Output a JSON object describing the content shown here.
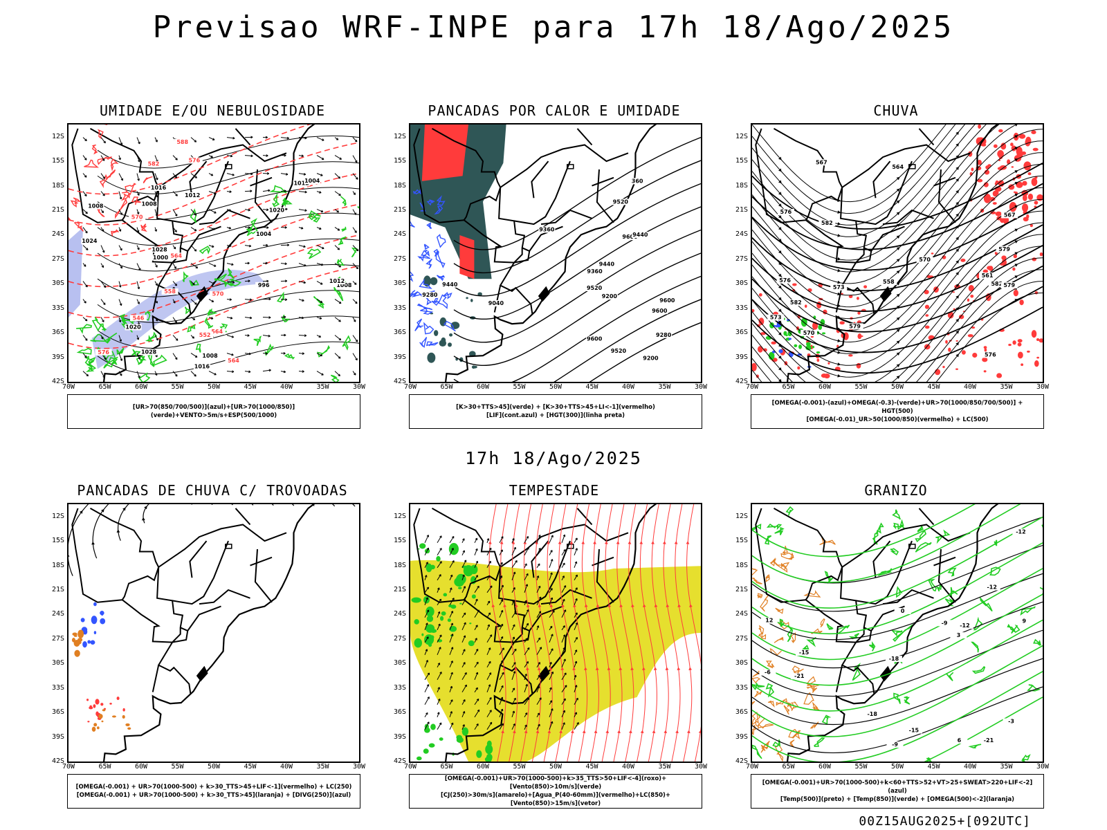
{
  "header": {
    "title": "Previsao WRF-INPE  para 17h 18/Ago/2025",
    "mid_title": "17h 18/Ago/2025",
    "footer": "00Z15AUG2025+[092UTC]"
  },
  "axes": {
    "lat_labels": [
      "12S",
      "15S",
      "18S",
      "21S",
      "24S",
      "27S",
      "30S",
      "33S",
      "36S",
      "39S",
      "42S"
    ],
    "lon_labels": [
      "70W",
      "65W",
      "60W",
      "55W",
      "50W",
      "45W",
      "40W",
      "35W",
      "30W"
    ]
  },
  "panels": [
    {
      "title": "UMIDADE E/OU NEBULOSIDADE",
      "legend": [
        "[UR>70(850/700/500)](azul)+[UR>70(1000/850)](verde)+VENTO>5m/s+ESP(500/1000)"
      ],
      "contour_labels": [
        "1008",
        "1008",
        "1004",
        "1008",
        "1012",
        "1016",
        "996",
        "1000",
        "1004",
        "1008",
        "1012",
        "1016",
        "1020",
        "1020",
        "1024",
        "1028",
        "1028",
        "1012",
        "576",
        "570",
        "564",
        "558",
        "582",
        "588",
        "564",
        "576",
        "552",
        "546",
        "564",
        "570"
      ]
    },
    {
      "title": "PANCADAS POR CALOR E UMIDADE",
      "legend": [
        "[K>30+TTS>45](verde) + [K>30+TTS>45+LI<-1](vermelho)",
        "[LIF](cont.azul) + [HGT(300)](linha preta)"
      ],
      "contour_labels": [
        "9520",
        "9600",
        "9600",
        "9600",
        "9600",
        "9520",
        "9440",
        "9360",
        "9280",
        "9520",
        "9440",
        "9360",
        "9280",
        "9200",
        "9040",
        "9200",
        "360",
        "9440"
      ]
    },
    {
      "title": "CHUVA",
      "legend": [
        "[OMEGA(-0.001)-(azul)+OMEGA(-0.3)-(verde)+UR>70(1000/850/700/500)] + HGT(500)",
        "[OMEGA(-0.01)_UR>50(1000/850)(vermelho) + LC(500)"
      ],
      "contour_labels": [
        "582",
        "582",
        "576",
        "579",
        "582",
        "579",
        "576",
        "573",
        "570",
        "567",
        "564",
        "573",
        "570",
        "567",
        "561",
        "558",
        "579",
        "576"
      ]
    },
    {
      "title": "PANCADAS DE CHUVA C/ TROVOADAS",
      "legend": [
        "[OMEGA(-0.001) + UR>70(1000-500) + k>30_TTS>45+LIF<-1](vermelho) + LC(250)",
        "[OMEGA(-0.001) + UR>70(1000-500) + k>30_TTS>45](laranja) + [DIVG(250)](azul)"
      ],
      "contour_labels": []
    },
    {
      "title": "TEMPESTADE",
      "legend": [
        "[OMEGA(-0.001)+UR>70(1000-500)+k>35_TTS>50+LIF<-4](roxo)+[Vento(850)>10m/s](verde)",
        "[CJ(250)>30m/s](amarelo)+[Agua_P(40-60mm)](vermelho)+LC(850)+[Vento(850)>15m/s](vetor)"
      ],
      "contour_labels": []
    },
    {
      "title": "GRANIZO",
      "legend": [
        "[OMEGA(-0.001)+UR>70(1000-500)+k<60+TTS>52+VT>25+SWEAT>220+LIF<-2](azul)",
        "[Temp(500)](preto) + [Temp(850)](verde) + [OMEGA(500)<-2](laranja)"
      ],
      "contour_labels": [
        "-9",
        "-12",
        "-15",
        "-18",
        "-21",
        "-12",
        "-15",
        "-18",
        "-21",
        "-9",
        "-6",
        "-3",
        "0",
        "3",
        "6",
        "9",
        "12",
        "-12"
      ]
    }
  ],
  "colors": {
    "black": "#000000",
    "red": "#ff3b3b",
    "green": "#22cc22",
    "blue": "#3355ff",
    "lightblue": "#b8c0f0",
    "darkteal": "#2f5656",
    "yellow": "#e6df2e",
    "orange": "#e07f22"
  }
}
